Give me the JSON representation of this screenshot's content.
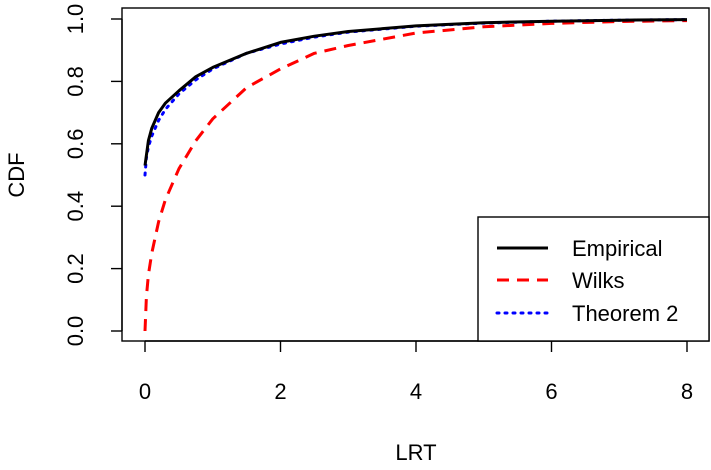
{
  "chart_data": {
    "type": "line",
    "title": "",
    "xlabel": "LRT",
    "ylabel": "CDF",
    "xlim": [
      0,
      8
    ],
    "ylim": [
      0,
      1
    ],
    "x_ticks": [
      "0",
      "2",
      "4",
      "6",
      "8"
    ],
    "y_ticks": [
      "0.0",
      "0.2",
      "0.4",
      "0.6",
      "0.8",
      "1.0"
    ],
    "grid": false,
    "legend_position": "bottom-right",
    "series": [
      {
        "name": "Empirical",
        "color": "#000000",
        "style": "solid",
        "x": [
          0,
          0.05,
          0.1,
          0.2,
          0.3,
          0.5,
          0.75,
          1.0,
          1.5,
          2.0,
          2.5,
          3.0,
          4.0,
          5.0,
          6.0,
          7.0,
          8.0
        ],
        "y": [
          0.53,
          0.61,
          0.65,
          0.7,
          0.73,
          0.77,
          0.815,
          0.845,
          0.89,
          0.925,
          0.945,
          0.96,
          0.978,
          0.988,
          0.993,
          0.996,
          0.998
        ]
      },
      {
        "name": "Wilks",
        "color": "#ff0000",
        "style": "dashed",
        "x": [
          0,
          0.02,
          0.05,
          0.1,
          0.2,
          0.3,
          0.5,
          0.75,
          1.0,
          1.5,
          2.0,
          2.5,
          3.0,
          4.0,
          5.0,
          6.0,
          7.0,
          8.0
        ],
        "y": [
          0.0,
          0.11,
          0.18,
          0.25,
          0.35,
          0.42,
          0.52,
          0.61,
          0.68,
          0.78,
          0.84,
          0.89,
          0.915,
          0.955,
          0.975,
          0.986,
          0.992,
          0.995
        ]
      },
      {
        "name": "Theorem 2",
        "color": "#0000ff",
        "style": "dotted",
        "x": [
          0,
          0.02,
          0.05,
          0.1,
          0.2,
          0.3,
          0.5,
          0.75,
          1.0,
          1.5,
          2.0,
          2.5,
          3.0,
          4.0,
          5.0,
          6.0,
          7.0,
          8.0
        ],
        "y": [
          0.5,
          0.555,
          0.59,
          0.625,
          0.675,
          0.71,
          0.76,
          0.805,
          0.84,
          0.89,
          0.92,
          0.942,
          0.958,
          0.977,
          0.987,
          0.993,
          0.996,
          0.998
        ]
      }
    ]
  }
}
